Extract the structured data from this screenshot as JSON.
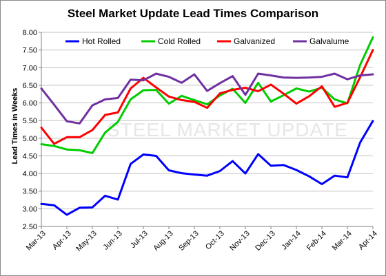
{
  "chart_data": {
    "type": "line",
    "title": "Steel Market Update Lead Times Comparison",
    "xlabel": "",
    "ylabel": "Lead Times in Weeks",
    "watermark": "STEEL MARKET UPDATE",
    "ylim": [
      2.5,
      8.0
    ],
    "yticks": [
      "2.50",
      "3.00",
      "3.50",
      "4.00",
      "4.50",
      "5.00",
      "5.50",
      "6.00",
      "6.50",
      "7.00",
      "7.50",
      "8.00"
    ],
    "x_tick_labels": [
      "Mar-13",
      "Apr-13",
      "May-13",
      "Jun-13",
      "Jul-13",
      "Aug-13",
      "Sep-13",
      "Oct-13",
      "Nov-13",
      "Dec-13",
      "Jan-14",
      "Feb-14",
      "Mar-14",
      "Apr-14"
    ],
    "n_points": 27,
    "grid": true,
    "legend_position": "top",
    "series": [
      {
        "name": "Hot Rolled",
        "color": "#0000ff",
        "values": [
          3.14,
          3.1,
          2.83,
          3.03,
          3.04,
          3.37,
          3.26,
          4.27,
          4.54,
          4.5,
          4.09,
          4.01,
          3.97,
          3.94,
          4.07,
          4.35,
          4.0,
          4.55,
          4.22,
          4.24,
          4.1,
          3.92,
          3.7,
          3.94,
          3.89,
          4.88,
          5.49
        ]
      },
      {
        "name": "Cold Rolled",
        "color": "#00cc00",
        "values": [
          4.83,
          4.78,
          4.68,
          4.66,
          4.58,
          5.16,
          5.46,
          6.1,
          6.36,
          6.37,
          5.98,
          6.2,
          6.08,
          5.96,
          6.21,
          6.4,
          6.0,
          6.57,
          6.04,
          6.22,
          6.41,
          6.32,
          6.43,
          6.1,
          5.99,
          7.08,
          7.86
        ]
      },
      {
        "name": "Galvanized",
        "color": "#ff0000",
        "values": [
          5.3,
          4.84,
          5.03,
          5.03,
          5.23,
          5.66,
          5.73,
          6.41,
          6.71,
          6.44,
          6.18,
          6.08,
          6.03,
          5.86,
          6.27,
          6.37,
          6.43,
          6.33,
          6.52,
          6.26,
          5.98,
          6.19,
          6.47,
          5.89,
          6.0,
          6.73,
          7.5
        ]
      },
      {
        "name": "Galvalume",
        "color": "#7030a0",
        "values": [
          6.41,
          5.95,
          5.48,
          5.42,
          5.93,
          6.1,
          6.14,
          6.66,
          6.64,
          6.83,
          6.74,
          6.57,
          6.81,
          6.34,
          6.56,
          6.76,
          6.23,
          6.83,
          6.78,
          6.72,
          6.71,
          6.72,
          6.74,
          6.83,
          6.67,
          6.78,
          6.81
        ]
      }
    ]
  }
}
